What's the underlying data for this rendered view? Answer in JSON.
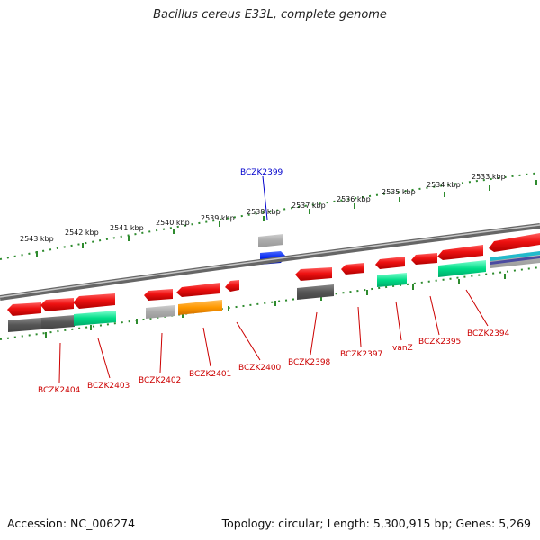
{
  "title": "Bacillus cereus E33L, complete genome",
  "accession": "Accession: NC_006274",
  "summary": "Topology: circular; Length: 5,300,915 bp; Genes: 5,269",
  "colors": {
    "backbone": "#8a8a8a",
    "tick": "#2e8b2e",
    "gene_label": "#cc0000",
    "highlight_label": "#0000cc",
    "cds": "#ee1111",
    "rna": "#ff9900",
    "hit_dark": "#555555",
    "hit_light": "#aaaaaa",
    "hit_green": "#00dd88",
    "highlight": "#0022ee"
  },
  "scale_labels": [
    "2543 kbp",
    "2542 kbp",
    "2541 kbp",
    "2540 kbp",
    "2539 kbp",
    "2538 kbp",
    "2537 kbp",
    "2536 kbp",
    "2535 kbp",
    "2534 kbp",
    "2533 kbp"
  ],
  "genes": [
    {
      "name": "BCZK2404",
      "highlight": false
    },
    {
      "name": "BCZK2403",
      "highlight": false
    },
    {
      "name": "BCZK2402",
      "highlight": false
    },
    {
      "name": "BCZK2401",
      "highlight": false
    },
    {
      "name": "BCZK2400",
      "highlight": false
    },
    {
      "name": "BCZK2399",
      "highlight": true
    },
    {
      "name": "BCZK2398",
      "highlight": false
    },
    {
      "name": "BCZK2397",
      "highlight": false
    },
    {
      "name": "vanZ",
      "highlight": false
    },
    {
      "name": "BCZK2395",
      "highlight": false
    },
    {
      "name": "BCZK2394",
      "highlight": false
    }
  ]
}
